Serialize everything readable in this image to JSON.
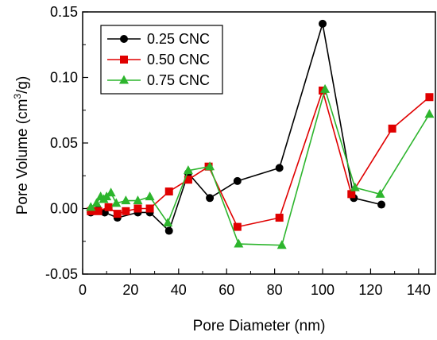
{
  "chart_data": {
    "type": "line",
    "xlabel": "Pore Diameter (nm)",
    "ylabel_main": "Pore Volume (cm",
    "ylabel_sup": "3",
    "ylabel_tail": "/g)",
    "xlim": [
      0,
      147
    ],
    "ylim": [
      -0.05,
      0.15
    ],
    "x_ticks": [
      0,
      20,
      40,
      60,
      80,
      100,
      120,
      140
    ],
    "y_ticks": [
      -0.05,
      0.0,
      0.05,
      0.1,
      0.15
    ],
    "x_tick_labels": [
      "0",
      "20",
      "40",
      "60",
      "80",
      "100",
      "120",
      "140"
    ],
    "y_tick_labels": [
      "-0.05",
      "0.00",
      "0.05",
      "0.10",
      "0.15"
    ],
    "grid": false,
    "legend_position": "top-left",
    "series": [
      {
        "name": "0.25 CNC",
        "color": "#000000",
        "marker": "circle",
        "x": [
          3.4,
          6.5,
          9.2,
          14.5,
          23.0,
          28.0,
          36.0,
          44.0,
          53.0,
          64.5,
          82.0,
          100.0,
          113.0,
          124.5
        ],
        "y": [
          -0.003,
          -0.001,
          -0.003,
          -0.007,
          -0.003,
          -0.003,
          -0.017,
          0.027,
          0.008,
          0.021,
          0.031,
          0.141,
          0.008,
          0.003
        ]
      },
      {
        "name": "0.50 CNC",
        "color": "#e00000",
        "marker": "square",
        "x": [
          3.4,
          6.5,
          10.8,
          14.5,
          18.0,
          23.0,
          28.0,
          36.0,
          44.0,
          52.5,
          64.5,
          82.0,
          100.0,
          112.0,
          129.0,
          144.5
        ],
        "y": [
          -0.002,
          -0.002,
          0.001,
          -0.004,
          -0.002,
          0.0,
          0.0,
          0.013,
          0.022,
          0.032,
          -0.014,
          -0.007,
          0.09,
          0.011,
          0.061,
          0.085
        ]
      },
      {
        "name": "0.75 CNC",
        "color": "#2db52d",
        "marker": "triangle",
        "x": [
          3.4,
          5.8,
          7.5,
          8.8,
          10.0,
          11.8,
          14.0,
          18.0,
          23.0,
          28.0,
          35.5,
          44.0,
          53.0,
          65.0,
          83.0,
          101.0,
          113.5,
          124.0,
          144.5
        ],
        "y": [
          0.001,
          0.004,
          0.009,
          0.007,
          0.009,
          0.012,
          0.004,
          0.006,
          0.006,
          0.009,
          -0.011,
          0.029,
          0.032,
          -0.027,
          -0.028,
          0.091,
          0.016,
          0.011,
          0.072
        ]
      }
    ]
  }
}
